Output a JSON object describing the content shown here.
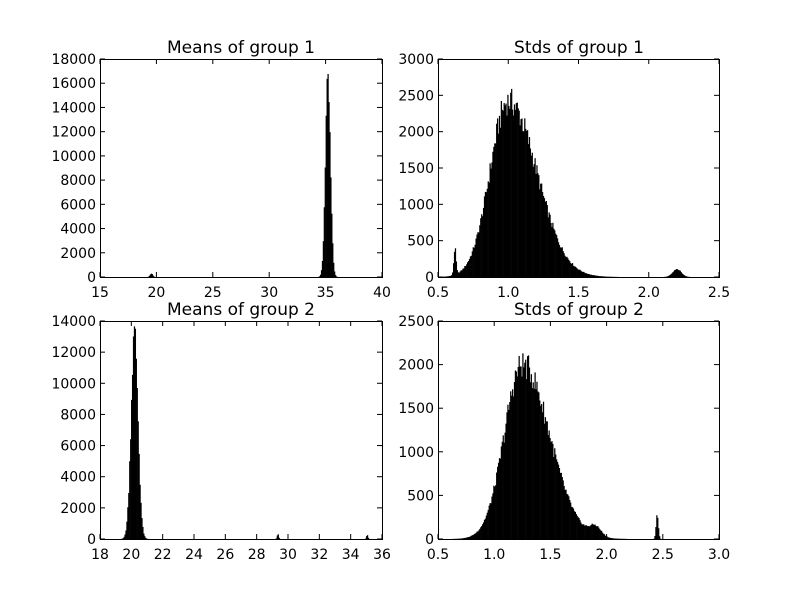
{
  "chart_data": [
    {
      "type": "bar",
      "title": "Means of group 1",
      "xlim": [
        15,
        40
      ],
      "ylim": [
        0,
        18000
      ],
      "xticks": [
        15,
        20,
        25,
        30,
        35,
        40
      ],
      "yticks": [
        0,
        2000,
        4000,
        6000,
        8000,
        10000,
        12000,
        14000,
        16000,
        18000
      ],
      "components": [
        {
          "center": 35.2,
          "sigma": 0.22,
          "peak": 16800
        },
        {
          "center": 19.55,
          "sigma": 0.12,
          "peak": 280
        }
      ]
    },
    {
      "type": "bar",
      "title": "Stds of group 1",
      "xlim": [
        0.5,
        2.5
      ],
      "ylim": [
        0,
        3000
      ],
      "xticks": [
        0.5,
        1.0,
        1.5,
        2.0,
        2.5
      ],
      "yticks": [
        0,
        500,
        1000,
        1500,
        2000,
        2500,
        3000
      ],
      "components": [
        {
          "center": 1.0,
          "sigma_left": 0.13,
          "sigma_right": 0.2,
          "peak": 2420
        },
        {
          "center": 0.62,
          "sigma": 0.008,
          "peak": 360
        },
        {
          "center": 2.2,
          "sigma": 0.03,
          "peak": 110
        }
      ]
    },
    {
      "type": "bar",
      "title": "Means of group 2",
      "xlim": [
        18,
        36
      ],
      "ylim": [
        0,
        14000
      ],
      "xticks": [
        18,
        20,
        22,
        24,
        26,
        28,
        30,
        32,
        34,
        36
      ],
      "yticks": [
        0,
        2000,
        4000,
        6000,
        8000,
        10000,
        12000,
        14000
      ],
      "components": [
        {
          "center": 20.2,
          "sigma": 0.22,
          "peak": 13200
        },
        {
          "center": 29.35,
          "sigma": 0.05,
          "peak": 320
        },
        {
          "center": 35.05,
          "sigma": 0.05,
          "peak": 260
        }
      ]
    },
    {
      "type": "bar",
      "title": "Stds of group 2",
      "xlim": [
        0.5,
        3.0
      ],
      "ylim": [
        0,
        2500
      ],
      "xticks": [
        0.5,
        1.0,
        1.5,
        2.0,
        2.5,
        3.0
      ],
      "yticks": [
        0,
        500,
        1000,
        1500,
        2000,
        2500
      ],
      "components": [
        {
          "center": 1.25,
          "sigma_left": 0.16,
          "sigma_right": 0.24,
          "peak": 2000
        },
        {
          "center": 1.9,
          "sigma": 0.05,
          "peak": 110
        },
        {
          "center": 2.45,
          "sigma": 0.01,
          "peak": 280
        }
      ]
    }
  ]
}
